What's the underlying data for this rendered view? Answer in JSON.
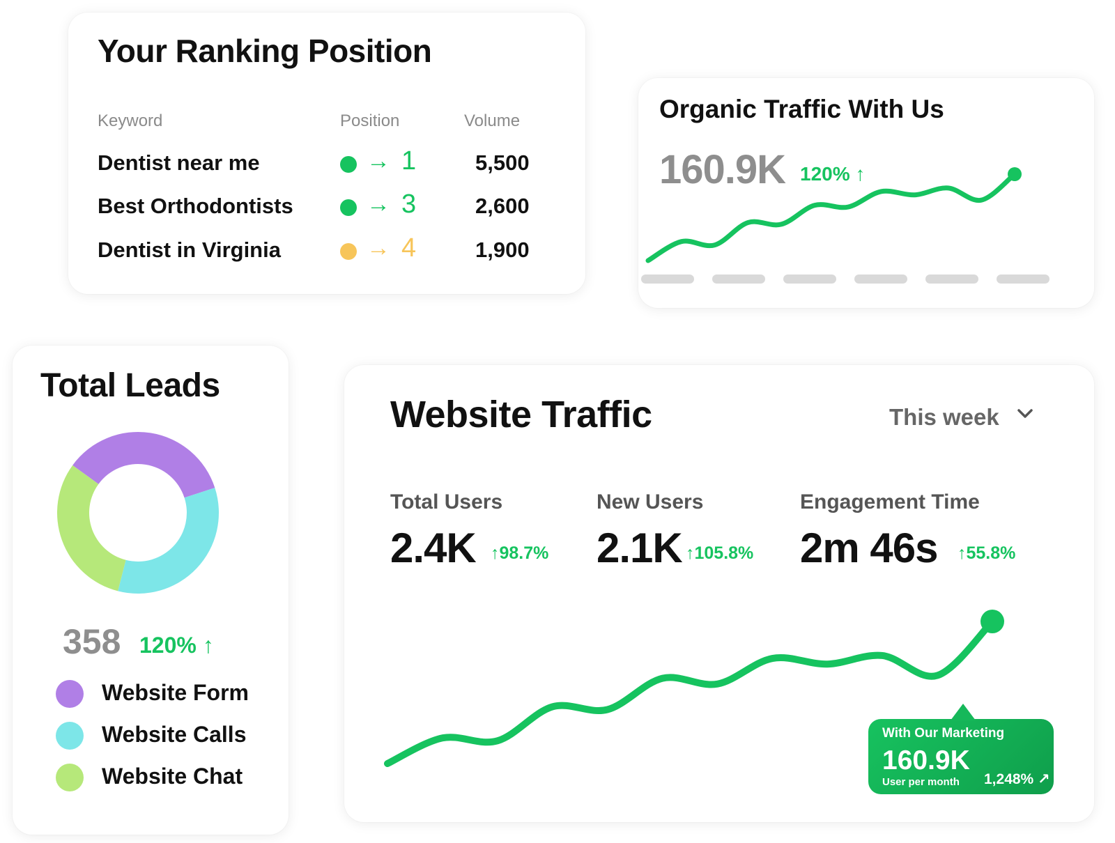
{
  "colors": {
    "green": "#16c35f",
    "yellow": "#f7c55a",
    "purple": "#b07fe6",
    "cyan": "#7de6e8",
    "lime": "#b6e87a",
    "placeholder": "#d9d9d9"
  },
  "ranking": {
    "title": "Your Ranking Position",
    "headers": {
      "keyword": "Keyword",
      "position": "Position",
      "volume": "Volume"
    },
    "rows": [
      {
        "keyword": "Dentist near me",
        "arrow": "→",
        "position": "1",
        "volume": "5,500",
        "status_color": "#16c35f"
      },
      {
        "keyword": "Best Orthodontists",
        "arrow": "→",
        "position": "3",
        "volume": "2,600",
        "status_color": "#16c35f"
      },
      {
        "keyword": "Dentist in Virginia",
        "arrow": "→",
        "position": "4",
        "volume": "1,900",
        "status_color": "#f7c55a"
      }
    ]
  },
  "organic": {
    "title": "Organic Traffic With Us",
    "value": "160.9K",
    "change": "120% ↑"
  },
  "leads": {
    "title": "Total Leads",
    "total": "358",
    "change": "120% ↑",
    "legend": [
      {
        "label": "Website Form",
        "color": "#b07fe6"
      },
      {
        "label": "Website Calls",
        "color": "#7de6e8"
      },
      {
        "label": "Website Chat",
        "color": "#b6e87a"
      }
    ]
  },
  "chart_data": [
    {
      "type": "pie",
      "title": "Total Leads",
      "labels": [
        "Website Form",
        "Website Calls",
        "Website Chat"
      ],
      "values": [
        35,
        34,
        31
      ],
      "colors": [
        "#b07fe6",
        "#7de6e8",
        "#b6e87a"
      ]
    },
    {
      "type": "line",
      "title": "Organic Traffic With Us",
      "x": [
        1,
        2,
        3,
        4,
        5,
        6,
        7,
        8,
        9,
        10,
        11,
        12
      ],
      "y": [
        0,
        22,
        18,
        44,
        42,
        64,
        62,
        80,
        76,
        84,
        70,
        100
      ],
      "grid": false
    },
    {
      "type": "line",
      "title": "Website Traffic",
      "x": [
        1,
        2,
        3,
        4,
        5,
        6,
        7,
        8,
        9,
        10,
        11,
        12
      ],
      "y": [
        0,
        18,
        16,
        40,
        38,
        60,
        56,
        74,
        70,
        76,
        62,
        100
      ],
      "grid": false
    }
  ],
  "traffic": {
    "title": "Website Traffic",
    "period": "This week",
    "metrics": [
      {
        "label": "Total Users",
        "value": "2.4K",
        "delta": "↑98.7%"
      },
      {
        "label": "New Users",
        "value": "2.1K",
        "delta": "↑105.8%"
      },
      {
        "label": "Engagement Time",
        "value": "2m 46s",
        "delta": "↑55.8%"
      }
    ],
    "tooltip": {
      "heading": "With Our Marketing",
      "value": "160.9K",
      "caption": "User per month",
      "growth": "1,248% ↗"
    }
  }
}
